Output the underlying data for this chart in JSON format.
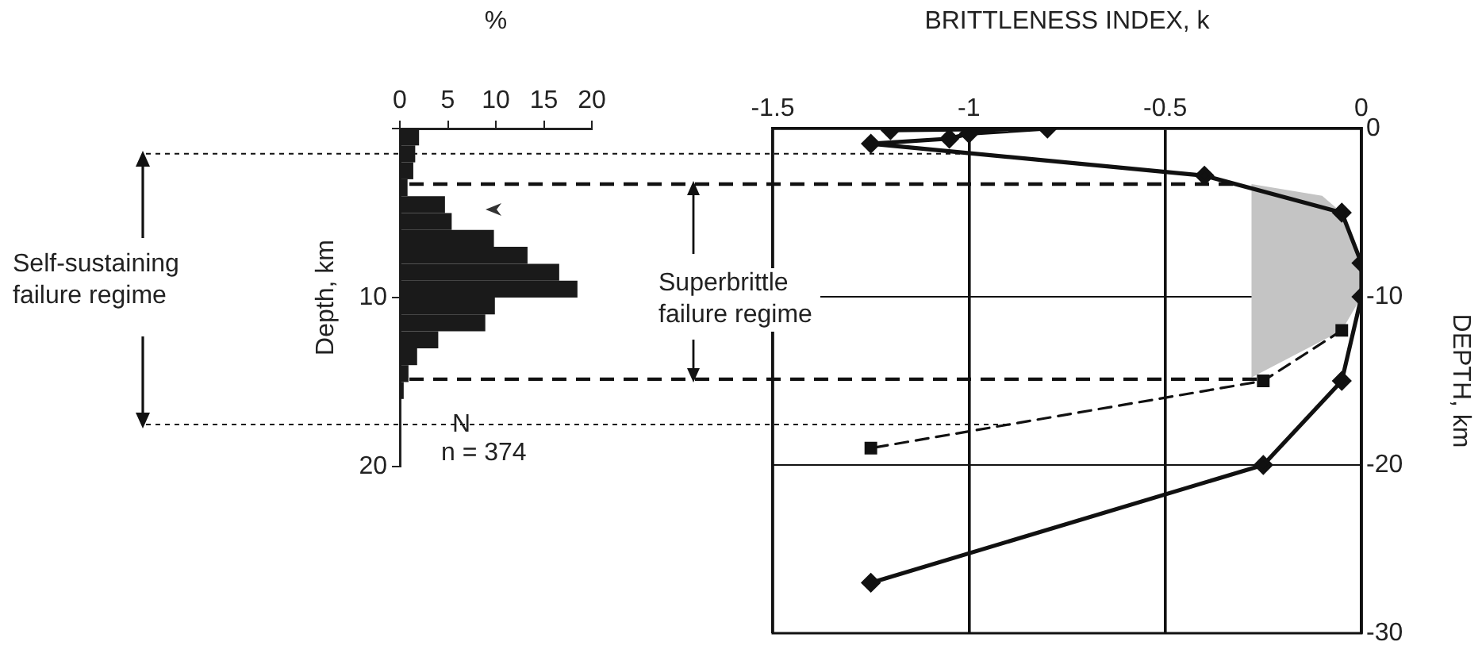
{
  "chart_data": [
    {
      "type": "histogram",
      "orientation": "horizontal",
      "xlabel": "%",
      "ylabel": "Depth, km",
      "bins": [
        0,
        1,
        2,
        3,
        4,
        5,
        6,
        7,
        8,
        9,
        10,
        11,
        12,
        13,
        14,
        15,
        16
      ],
      "values": [
        2.0,
        1.6,
        1.4,
        0.8,
        4.7,
        5.4,
        9.8,
        13.3,
        16.6,
        18.5,
        9.9,
        8.9,
        4.0,
        1.8,
        0.9,
        0.4
      ],
      "color": "#1a1a1a",
      "xlim": [
        0,
        20
      ],
      "xticks": [
        0,
        5,
        10,
        15,
        20
      ],
      "ylim": [
        20,
        0
      ],
      "yticks": [
        {
          "value": 0,
          "label": null
        },
        10,
        20
      ],
      "grid": false,
      "annotations": [
        "N",
        "n = 374"
      ]
    },
    {
      "type": "line",
      "xlabel": "BRITTLENESS INDEX, k",
      "ylabel": "DEPTH, km",
      "xlim": [
        -1.5,
        0
      ],
      "xticks": [
        -1.5,
        -1,
        -0.5,
        0
      ],
      "ylim": [
        -30,
        0
      ],
      "yticks": [
        -30,
        -20,
        -10,
        0
      ],
      "grid": true,
      "series": [
        {
          "color": "#111111",
          "marker": "diamond",
          "line_style": "solid",
          "x": [
            -1.2,
            -0.8,
            -1.0,
            -1.05,
            -1.25,
            -0.4,
            -0.05,
            0,
            0,
            -0.05,
            -0.25,
            -1.25
          ],
          "values": [
            -0.1,
            0,
            -0.3,
            -0.6,
            -0.9,
            -2.8,
            -5,
            -8,
            -10,
            -15,
            -20,
            -27
          ]
        },
        {
          "color": "#111111",
          "marker": "square",
          "line_style": "dashed",
          "x": [
            -0.05,
            -0.25,
            -1.25
          ],
          "values": [
            -12,
            -15,
            -19
          ]
        },
        {
          "type": "area",
          "color": "#c4c4c4",
          "x": [
            -0.28,
            -0.1,
            -0.05,
            0,
            0,
            -0.05,
            -0.28
          ],
          "values": [
            -3.3,
            -4,
            -5,
            -8,
            -10,
            -12,
            -14.8
          ]
        }
      ],
      "ref_lines": [
        {
          "axis": "y",
          "value": -1.5,
          "line_style": "dotted"
        },
        {
          "axis": "y",
          "value": -3.3,
          "line_style": "dashed"
        },
        {
          "axis": "y",
          "value": -14.9,
          "line_style": "dashed"
        },
        {
          "axis": "y",
          "value": -17.6,
          "line_style": "dotted"
        }
      ],
      "annotations": [
        "Self-sustaining failure regime",
        "Superbrittle failure regime"
      ]
    }
  ]
}
